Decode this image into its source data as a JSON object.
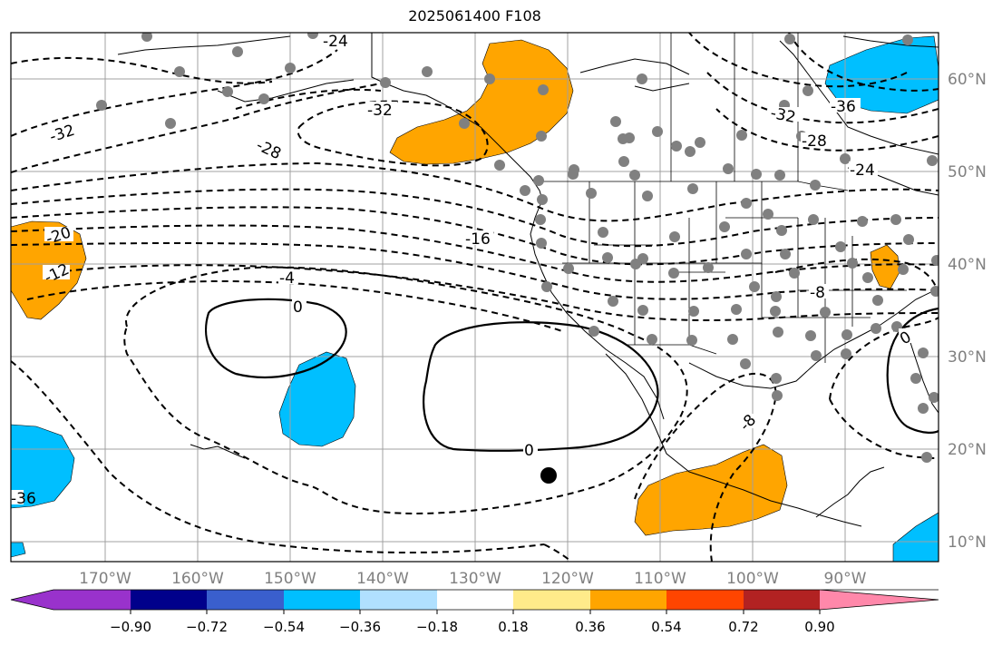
{
  "title": "2025061400 F108",
  "lat_labels": [
    "60°N",
    "50°N",
    "40°N",
    "30°N",
    "20°N",
    "10°N"
  ],
  "lon_labels": [
    "170°W",
    "160°W",
    "150°W",
    "140°W",
    "130°W",
    "120°W",
    "110°W",
    "100°W",
    "90°W"
  ],
  "contour_labels": [
    "-24",
    "-36",
    "-32",
    "-28",
    "-32",
    "-32",
    "-28",
    "-24",
    "-16",
    "-20",
    "-12",
    "-4",
    "0",
    "0",
    "-8",
    "-8",
    "0",
    "-36"
  ],
  "colorbar": {
    "ticks": [
      "−0.90",
      "−0.72",
      "−0.54",
      "−0.36",
      "−0.18",
      "0.18",
      "0.36",
      "0.54",
      "0.72",
      "0.90"
    ],
    "colors": [
      "#9932cc",
      "#00008b",
      "#3a5fcd",
      "#00bfff",
      "#b0e0ff",
      "#ffffff",
      "#ffeb8a",
      "#ffa500",
      "#ff4500",
      "#b22222",
      "#ff88aa"
    ]
  },
  "colors": {
    "positive_fill": "#ffa500",
    "negative_fill": "#00bfff",
    "station_dot": "#808080",
    "grid": "#a0a0a0"
  }
}
